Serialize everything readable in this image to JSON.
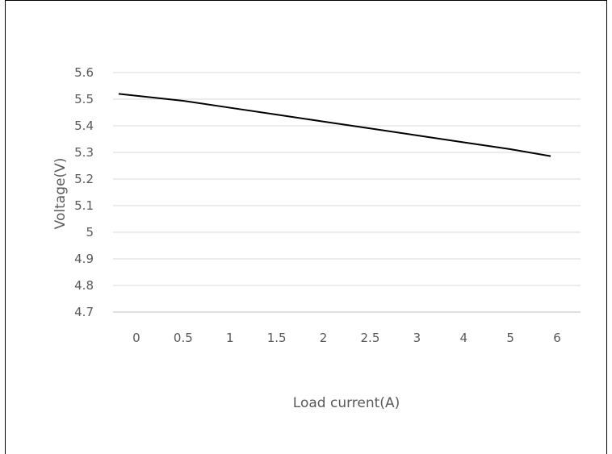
{
  "chart_data": {
    "type": "line",
    "title": "",
    "xlabel": "Load current(A)",
    "ylabel": "Voltage(V)",
    "categories": [
      "0",
      "0.5",
      "1",
      "1.5",
      "2",
      "2.5",
      "3",
      "4",
      "5",
      "6"
    ],
    "yticks": [
      "4.7",
      "4.8",
      "4.9",
      "5",
      "5.1",
      "5.2",
      "5.3",
      "5.4",
      "5.5",
      "5.6"
    ],
    "ylim": [
      4.7,
      5.6
    ],
    "grid": true,
    "series": [
      {
        "values": [
          5.52,
          5.494,
          5.468,
          5.442,
          5.416,
          5.39,
          5.364,
          5.338,
          5.312,
          5.286
        ]
      }
    ],
    "line_color": "#000000",
    "grid_color": "#d9d9d9"
  }
}
